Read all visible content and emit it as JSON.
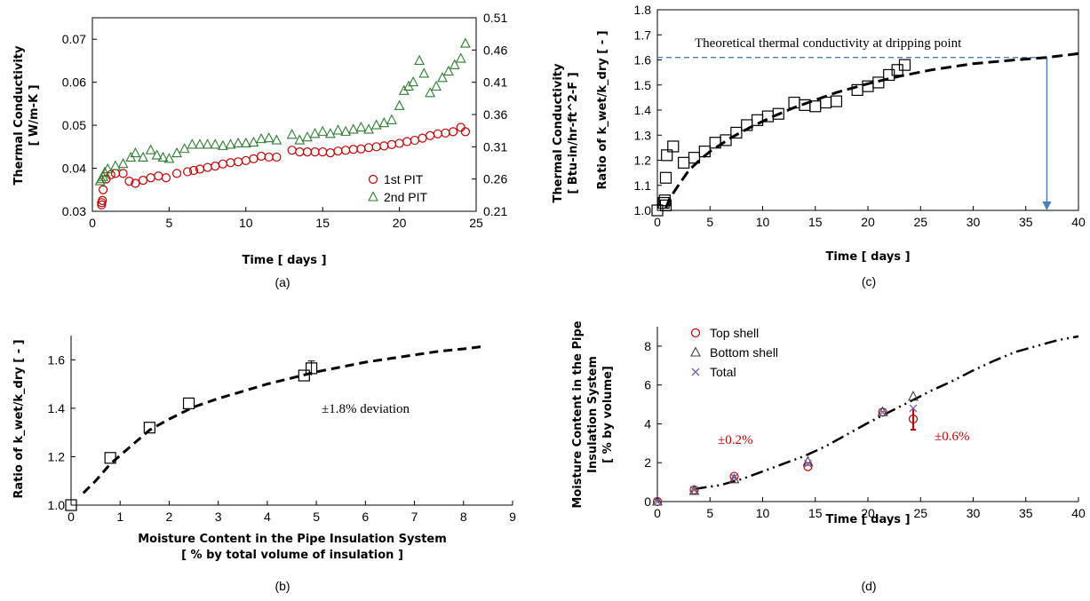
{
  "chart_data": [
    {
      "type": "scatter",
      "panel_label": "(a)",
      "xlabel": "Time [ days ]",
      "ylabel_line1": "Thermal Conductivity",
      "ylabel_line2": "[ W/m-K ]",
      "y2label_line1": "Thermal Conductivity",
      "y2label_line2": "[ Btu-in/hr-ft^2-F ]",
      "xlim": [
        0,
        25
      ],
      "ylim": [
        0.03,
        0.075
      ],
      "y2lim": [
        0.21,
        0.51
      ],
      "xticks": [
        "0",
        "5",
        "10",
        "15",
        "20",
        "25"
      ],
      "yticks": [
        "0.03",
        "0.04",
        "0.05",
        "0.06",
        "0.07"
      ],
      "y2ticks": [
        "0.21",
        "0.26",
        "0.31",
        "0.36",
        "0.41",
        "0.46",
        "0.51"
      ],
      "legend_position": "bottom-right",
      "series": [
        {
          "name": "1st PIT",
          "marker": "circle",
          "color": "#c00000",
          "points": [
            [
              0.6,
              0.0315
            ],
            [
              0.6,
              0.032
            ],
            [
              0.65,
              0.0325
            ],
            [
              0.7,
              0.035
            ],
            [
              0.9,
              0.0375
            ],
            [
              1.2,
              0.0385
            ],
            [
              1.5,
              0.0388
            ],
            [
              2.0,
              0.0388
            ],
            [
              2.4,
              0.037
            ],
            [
              2.8,
              0.0365
            ],
            [
              3.3,
              0.0372
            ],
            [
              3.8,
              0.0378
            ],
            [
              4.3,
              0.0382
            ],
            [
              4.8,
              0.0378
            ],
            [
              5.5,
              0.0388
            ],
            [
              6.2,
              0.0392
            ],
            [
              6.6,
              0.0395
            ],
            [
              7.0,
              0.0398
            ],
            [
              7.5,
              0.0402
            ],
            [
              8.0,
              0.0405
            ],
            [
              8.5,
              0.041
            ],
            [
              9.0,
              0.0413
            ],
            [
              9.5,
              0.0415
            ],
            [
              10.0,
              0.0418
            ],
            [
              10.5,
              0.0422
            ],
            [
              11.0,
              0.0428
            ],
            [
              11.5,
              0.0426
            ],
            [
              12.0,
              0.0426
            ],
            [
              13.0,
              0.0442
            ],
            [
              13.5,
              0.0438
            ],
            [
              14.0,
              0.0438
            ],
            [
              14.5,
              0.0438
            ],
            [
              15.0,
              0.0438
            ],
            [
              15.5,
              0.0436
            ],
            [
              16.0,
              0.044
            ],
            [
              16.5,
              0.0442
            ],
            [
              17.0,
              0.0444
            ],
            [
              17.5,
              0.0445
            ],
            [
              18.0,
              0.0448
            ],
            [
              18.5,
              0.045
            ],
            [
              19.0,
              0.0452
            ],
            [
              19.5,
              0.0455
            ],
            [
              20.0,
              0.0458
            ],
            [
              20.5,
              0.0462
            ],
            [
              21.0,
              0.0465
            ],
            [
              21.5,
              0.047
            ],
            [
              22.0,
              0.0476
            ],
            [
              22.5,
              0.048
            ],
            [
              23.0,
              0.0482
            ],
            [
              23.5,
              0.0485
            ],
            [
              24.0,
              0.0495
            ],
            [
              24.3,
              0.0485
            ]
          ]
        },
        {
          "name": "2nd PIT",
          "marker": "triangle",
          "color": "#2e7d32",
          "points": [
            [
              0.5,
              0.037
            ],
            [
              0.6,
              0.0375
            ],
            [
              0.7,
              0.038
            ],
            [
              0.8,
              0.039
            ],
            [
              1.0,
              0.0398
            ],
            [
              1.5,
              0.0405
            ],
            [
              2.0,
              0.041
            ],
            [
              2.5,
              0.0425
            ],
            [
              2.8,
              0.0435
            ],
            [
              3.3,
              0.0425
            ],
            [
              3.8,
              0.0442
            ],
            [
              4.2,
              0.043
            ],
            [
              4.6,
              0.0425
            ],
            [
              5.0,
              0.0422
            ],
            [
              5.5,
              0.0435
            ],
            [
              6.0,
              0.0445
            ],
            [
              6.5,
              0.0455
            ],
            [
              7.0,
              0.0455
            ],
            [
              7.5,
              0.0455
            ],
            [
              8.0,
              0.0455
            ],
            [
              8.5,
              0.0452
            ],
            [
              9.0,
              0.0455
            ],
            [
              9.5,
              0.0458
            ],
            [
              10.0,
              0.0458
            ],
            [
              10.5,
              0.046
            ],
            [
              11.0,
              0.0468
            ],
            [
              11.5,
              0.047
            ],
            [
              12.0,
              0.0465
            ],
            [
              13.0,
              0.0478
            ],
            [
              13.5,
              0.0465
            ],
            [
              14.0,
              0.0472
            ],
            [
              14.5,
              0.048
            ],
            [
              15.0,
              0.0485
            ],
            [
              15.5,
              0.048
            ],
            [
              16.0,
              0.0488
            ],
            [
              16.5,
              0.0485
            ],
            [
              17.0,
              0.049
            ],
            [
              17.5,
              0.0495
            ],
            [
              18.0,
              0.049
            ],
            [
              18.5,
              0.05
            ],
            [
              19.0,
              0.0505
            ],
            [
              19.5,
              0.0512
            ],
            [
              20.0,
              0.0545
            ],
            [
              20.3,
              0.058
            ],
            [
              20.6,
              0.059
            ],
            [
              20.9,
              0.06
            ],
            [
              21.3,
              0.065
            ],
            [
              21.6,
              0.062
            ],
            [
              22.0,
              0.0575
            ],
            [
              22.4,
              0.059
            ],
            [
              22.8,
              0.061
            ],
            [
              23.2,
              0.0625
            ],
            [
              23.6,
              0.064
            ],
            [
              24.0,
              0.0655
            ],
            [
              24.3,
              0.069
            ]
          ]
        }
      ]
    },
    {
      "type": "scatter",
      "panel_label": "(b)",
      "xlabel_line1": "Moisture Content in the Pipe Insulation System",
      "xlabel_line2": "[ % by total volume of insulation ]",
      "ylabel": "Ratio of k_wet/k_dry [ - ]",
      "xlim": [
        0,
        9
      ],
      "ylim": [
        1.0,
        1.7
      ],
      "xticks": [
        "0",
        "1",
        "2",
        "3",
        "4",
        "5",
        "6",
        "7",
        "8",
        "9"
      ],
      "yticks": [
        "1.0",
        "1.2",
        "1.4",
        "1.6"
      ],
      "annotation": "±1.8% deviation",
      "series": [
        {
          "name": "",
          "marker": "square",
          "points": [
            [
              0,
              1.0
            ],
            [
              0.8,
              1.195
            ],
            [
              1.6,
              1.32
            ],
            [
              2.4,
              1.42
            ],
            [
              4.75,
              1.535
            ],
            [
              4.9,
              1.565
            ]
          ],
          "errorbars": [
            [
              4.9,
              1.535,
              1.595
            ]
          ]
        }
      ],
      "fit_curve": [
        [
          0.25,
          1.05
        ],
        [
          0.5,
          1.1
        ],
        [
          0.8,
          1.17
        ],
        [
          1.2,
          1.24
        ],
        [
          1.6,
          1.31
        ],
        [
          2.0,
          1.355
        ],
        [
          2.5,
          1.405
        ],
        [
          3.0,
          1.44
        ],
        [
          3.5,
          1.47
        ],
        [
          4.0,
          1.5
        ],
        [
          4.5,
          1.525
        ],
        [
          5.0,
          1.55
        ],
        [
          5.5,
          1.57
        ],
        [
          6.0,
          1.59
        ],
        [
          6.5,
          1.605
        ],
        [
          7.0,
          1.62
        ],
        [
          7.5,
          1.635
        ],
        [
          8.0,
          1.645
        ],
        [
          8.4,
          1.655
        ]
      ]
    },
    {
      "type": "scatter",
      "panel_label": "(c)",
      "xlabel": "Time [ days ]",
      "ylabel": "Ratio of k_wet/k_dry [ - ]",
      "xlim": [
        0,
        40
      ],
      "ylim": [
        1.0,
        1.8
      ],
      "xticks": [
        "0",
        "5",
        "10",
        "15",
        "20",
        "25",
        "30",
        "35",
        "40"
      ],
      "yticks": [
        "1.0",
        "1.1",
        "1.2",
        "1.3",
        "1.4",
        "1.5",
        "1.6",
        "1.7",
        "1.8"
      ],
      "annotation": "Theoretical thermal conductivity at dripping point",
      "reference_y": 1.61,
      "arrow_x": 37,
      "series": [
        {
          "name": "",
          "marker": "square",
          "points": [
            [
              0,
              1.0
            ],
            [
              0.6,
              1.03
            ],
            [
              0.7,
              1.04
            ],
            [
              0.8,
              1.02
            ],
            [
              0.8,
              1.13
            ],
            [
              0.9,
              1.22
            ],
            [
              1.5,
              1.255
            ],
            [
              2.5,
              1.19
            ],
            [
              3.5,
              1.21
            ],
            [
              4.5,
              1.235
            ],
            [
              5.5,
              1.27
            ],
            [
              6.5,
              1.28
            ],
            [
              7.5,
              1.31
            ],
            [
              8.5,
              1.34
            ],
            [
              9.5,
              1.36
            ],
            [
              10.5,
              1.375
            ],
            [
              11.5,
              1.385
            ],
            [
              13.0,
              1.43
            ],
            [
              14.0,
              1.42
            ],
            [
              15.0,
              1.415
            ],
            [
              16.0,
              1.43
            ],
            [
              17.0,
              1.435
            ],
            [
              19.0,
              1.48
            ],
            [
              20.0,
              1.495
            ],
            [
              21.0,
              1.51
            ],
            [
              22.0,
              1.54
            ],
            [
              22.8,
              1.56
            ],
            [
              23.5,
              1.58
            ]
          ]
        }
      ],
      "fit_curve": [
        [
          0.8,
          1.01
        ],
        [
          1.2,
          1.05
        ],
        [
          2,
          1.1
        ],
        [
          3,
          1.16
        ],
        [
          4,
          1.2
        ],
        [
          5,
          1.235
        ],
        [
          7,
          1.29
        ],
        [
          9,
          1.335
        ],
        [
          11,
          1.375
        ],
        [
          13,
          1.41
        ],
        [
          15,
          1.44
        ],
        [
          17,
          1.47
        ],
        [
          20,
          1.505
        ],
        [
          23,
          1.535
        ],
        [
          26,
          1.56
        ],
        [
          30,
          1.585
        ],
        [
          34,
          1.6
        ],
        [
          37,
          1.61
        ],
        [
          40,
          1.625
        ]
      ]
    },
    {
      "type": "scatter",
      "panel_label": "(d)",
      "xlabel": "Time [ days ]",
      "ylabel_line1": "Moisture Content in the Pipe",
      "ylabel_line2": "Insulation System",
      "ylabel_line3": "[ % by volume]",
      "xlim": [
        0,
        40
      ],
      "ylim": [
        0,
        9
      ],
      "xticks": [
        "0",
        "5",
        "10",
        "15",
        "20",
        "25",
        "30",
        "35",
        "40"
      ],
      "yticks": [
        "0",
        "2",
        "4",
        "6",
        "8"
      ],
      "legend_position": "top-left",
      "annotations": [
        "±0.2%",
        "±0.6%"
      ],
      "series": [
        {
          "name": "Top shell",
          "marker": "circle",
          "color": "#c00000",
          "points": [
            [
              0,
              0.0
            ],
            [
              3.5,
              0.6
            ],
            [
              7.3,
              1.3
            ],
            [
              14.3,
              1.8
            ],
            [
              21.4,
              4.6
            ],
            [
              24.3,
              4.25
            ]
          ],
          "errorbars": [
            [
              24.3,
              3.7,
              4.8
            ]
          ]
        },
        {
          "name": "Bottom shell",
          "marker": "triangle",
          "color": "#404040",
          "points": [
            [
              0,
              0.0
            ],
            [
              3.5,
              0.55
            ],
            [
              7.3,
              1.15
            ],
            [
              14.3,
              2.05
            ],
            [
              21.4,
              4.6
            ],
            [
              24.3,
              5.4
            ]
          ]
        },
        {
          "name": "Total",
          "marker": "x",
          "color": "#7b5ea7",
          "points": [
            [
              0,
              0.0
            ],
            [
              3.5,
              0.6
            ],
            [
              7.3,
              1.25
            ],
            [
              14.3,
              1.95
            ],
            [
              21.4,
              4.6
            ],
            [
              24.3,
              4.8
            ]
          ]
        }
      ],
      "fit_curve": [
        [
          3.5,
          0.65
        ],
        [
          6,
          0.85
        ],
        [
          8,
          1.15
        ],
        [
          10,
          1.55
        ],
        [
          12,
          1.95
        ],
        [
          14,
          2.35
        ],
        [
          16,
          2.85
        ],
        [
          18,
          3.45
        ],
        [
          20,
          4.05
        ],
        [
          22,
          4.6
        ],
        [
          24,
          5.15
        ],
        [
          26,
          5.7
        ],
        [
          28,
          6.2
        ],
        [
          30,
          6.75
        ],
        [
          32,
          7.25
        ],
        [
          34,
          7.7
        ],
        [
          36,
          8.0
        ],
        [
          38,
          8.3
        ],
        [
          40,
          8.5
        ]
      ]
    }
  ]
}
